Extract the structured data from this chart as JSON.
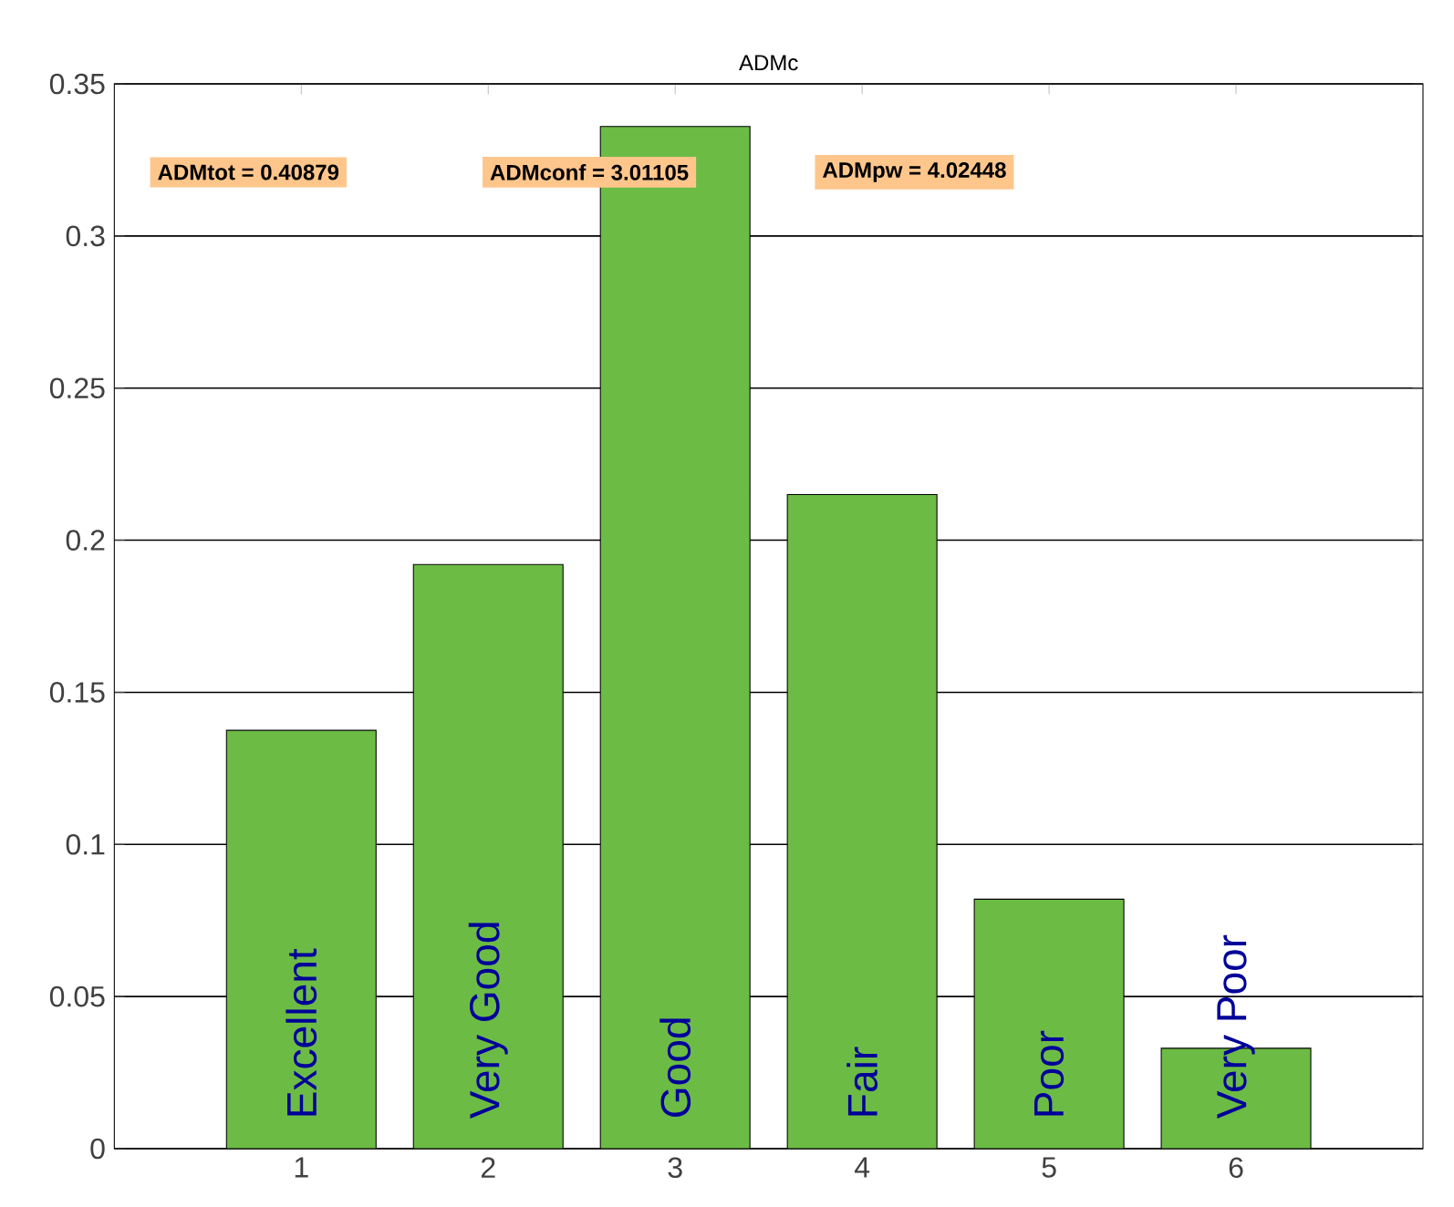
{
  "chart_data": {
    "type": "bar",
    "title": "ADMc",
    "categories": [
      "1",
      "2",
      "3",
      "4",
      "5",
      "6"
    ],
    "values": [
      0.1375,
      0.192,
      0.336,
      0.215,
      0.082,
      0.033
    ],
    "color": "#6cbb45",
    "ylim": [
      0,
      0.35
    ],
    "yticks": [
      0,
      0.05,
      0.1,
      0.15,
      0.2,
      0.25,
      0.3,
      0.35
    ],
    "grid": "y",
    "annotations": [
      "ADMtot = 0.40879",
      "ADMconf = 3.01105",
      "ADMpw = 4.02448",
      {
        "text": "Excellent",
        "x": "1",
        "y": 0
      },
      {
        "text": "Very Good",
        "x": "2",
        "y": 0
      },
      {
        "text": "Good",
        "x": "3",
        "y": 0
      },
      {
        "text": "Fair",
        "x": "4",
        "y": 0
      },
      {
        "text": "Poor",
        "x": "5",
        "y": 0
      },
      {
        "text": "Very Poor",
        "x": "6",
        "y": 0
      }
    ]
  }
}
